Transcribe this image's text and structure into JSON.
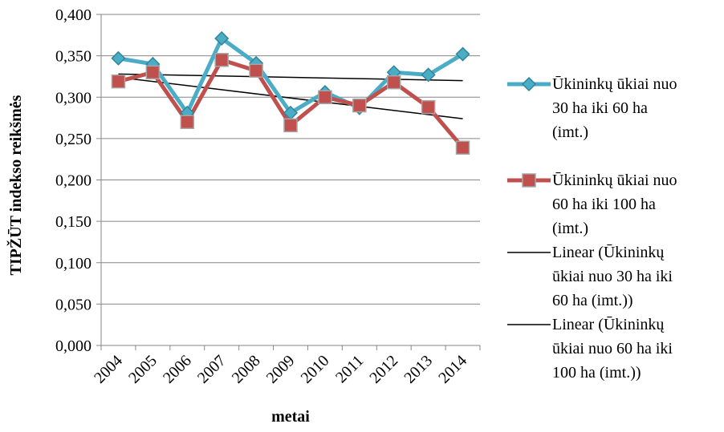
{
  "chart_data": {
    "type": "line",
    "title": "",
    "xlabel": "metai",
    "ylabel": "TIPŽŪT indekso reikšmės",
    "categories": [
      "2004",
      "2005",
      "2006",
      "2007",
      "2008",
      "2009",
      "2010",
      "2011",
      "2012",
      "2013",
      "2014"
    ],
    "ylim": [
      0,
      0.4
    ],
    "yticks": [
      "0,000",
      "0,050",
      "0,100",
      "0,150",
      "0,200",
      "0,250",
      "0,300",
      "0,350",
      "0,400"
    ],
    "grid": true,
    "legend_position": "right",
    "series": [
      {
        "name": "Ūkininkų ūkiai nuo 30 ha iki 60 ha (imt.)",
        "values": [
          0.347,
          0.34,
          0.281,
          0.371,
          0.341,
          0.281,
          0.306,
          0.287,
          0.33,
          0.327,
          0.352
        ],
        "color": "#4bacc6",
        "marker": "diamond"
      },
      {
        "name": "Ūkininkų ūkiai nuo 60 ha iki 100 ha (imt.)",
        "values": [
          0.319,
          0.33,
          0.27,
          0.345,
          0.332,
          0.266,
          0.3,
          0.29,
          0.318,
          0.288,
          0.239
        ],
        "color": "#c0504d",
        "marker": "square"
      }
    ],
    "trendlines": [
      {
        "name": "Linear (Ūkininkų ūkiai nuo 30 ha iki 60 ha (imt.))",
        "type": "linear",
        "start": 0.328,
        "end": 0.32,
        "color": "#000000"
      },
      {
        "name": "Linear (Ūkininkų ūkiai nuo 60 ha iki 100 ha (imt.))",
        "type": "linear",
        "start": 0.324,
        "end": 0.274,
        "color": "#000000"
      }
    ]
  },
  "legend": {
    "items": [
      {
        "label": "Ūkininkų ūkiai nuo\n30 ha iki 60 ha\n(imt.)"
      },
      {
        "label": "Ūkininkų ūkiai nuo\n60 ha iki 100 ha\n(imt.)"
      },
      {
        "label": "Linear (Ūkininkų\nūkiai nuo 30 ha iki\n60 ha (imt.))"
      },
      {
        "label": "Linear (Ūkininkų\nūkiai nuo 60 ha iki\n100 ha (imt.))"
      }
    ]
  }
}
